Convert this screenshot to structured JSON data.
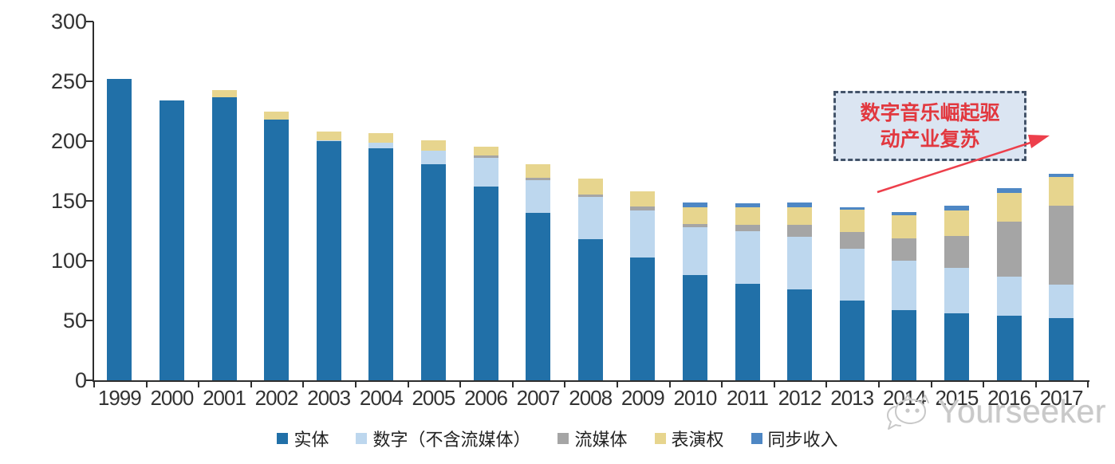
{
  "annotation": {
    "line1": "数字音乐崛起驱",
    "line2": "动产业复苏",
    "box_fill": "#dbe5f2",
    "box_border": "#44546a",
    "text_color": "#e2383f",
    "arrow_color": "#ed3f4b"
  },
  "watermark": {
    "brand": "Yourseeker",
    "logo": "chat-bubble-cat-logo",
    "color": "#c9c9c9"
  },
  "colors": {
    "axis": "#2e2e2e",
    "tick_text": "#333333",
    "background": "#ffffff"
  },
  "chart_data": {
    "type": "bar",
    "stacked": true,
    "title": "",
    "xlabel": "",
    "ylabel": "",
    "ylim": [
      0,
      300
    ],
    "yticks": [
      0,
      50,
      100,
      150,
      200,
      250,
      300
    ],
    "grid": false,
    "legend_position": "bottom",
    "categories": [
      "1999",
      "2000",
      "2001",
      "2002",
      "2003",
      "2004",
      "2005",
      "2006",
      "2007",
      "2008",
      "2009",
      "2010",
      "2011",
      "2012",
      "2013",
      "2014",
      "2015",
      "2016",
      "2017"
    ],
    "series": [
      {
        "name": "实体",
        "color": "#2170a8",
        "values": [
          252,
          234,
          237,
          218,
          200,
          194,
          181,
          162,
          140,
          118,
          103,
          88,
          81,
          76,
          67,
          59,
          56,
          54,
          52
        ]
      },
      {
        "name": "数字（不含流媒体）",
        "color": "#bdd7ee",
        "values": [
          0,
          0,
          0,
          0,
          1,
          5,
          11,
          24,
          27.5,
          35.5,
          39,
          40,
          44,
          44,
          43,
          41,
          38,
          33,
          28
        ]
      },
      {
        "name": "流媒体",
        "color": "#a5a5a5",
        "values": [
          0,
          0,
          0,
          0,
          0,
          0,
          0,
          2,
          2,
          2,
          3.5,
          3,
          5,
          10,
          14,
          19,
          27,
          46,
          66
        ]
      },
      {
        "name": "表演权",
        "color": "#e7d58e",
        "values": [
          0,
          0,
          6,
          7,
          7,
          8,
          9,
          7.5,
          11.5,
          13,
          12.5,
          14,
          14.5,
          15,
          18.5,
          19,
          21,
          24,
          24
        ]
      },
      {
        "name": "同步收入",
        "color": "#4e87c4",
        "values": [
          0,
          0,
          0,
          0,
          0,
          0,
          0,
          0,
          0,
          0,
          0,
          3.5,
          3.3,
          3.5,
          2.5,
          3,
          4,
          3.5,
          2.5
        ]
      }
    ]
  }
}
